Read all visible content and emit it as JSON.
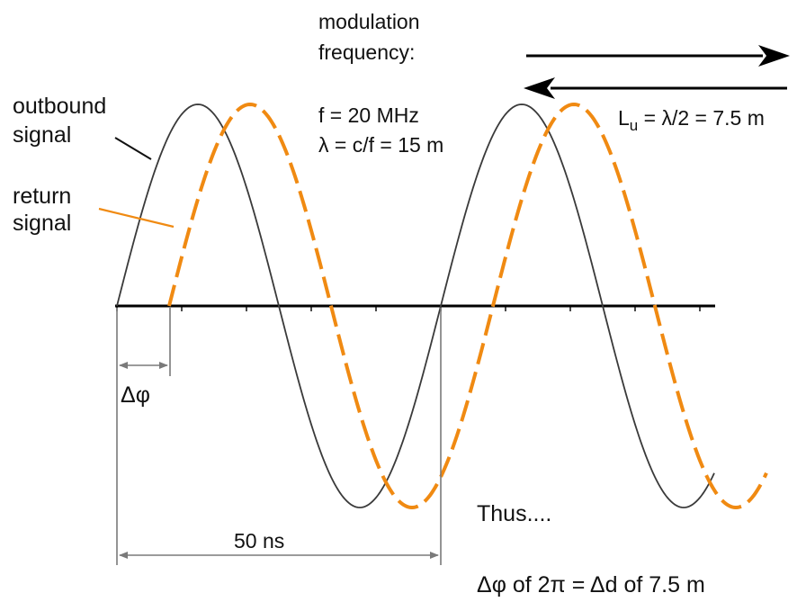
{
  "modulation": {
    "line1": "modulation",
    "line2": "frequency:"
  },
  "frequency": {
    "f": "f = 20 MHz",
    "lambda": "λ = c/f = 15 m"
  },
  "unambiguous_range": {
    "base": "L",
    "subscript": "u",
    "rest": " = λ/2 = 7.5 m"
  },
  "outbound_label": {
    "line1": "outbound",
    "line2": "signal"
  },
  "return_label": {
    "line1": "return",
    "line2": "signal"
  },
  "phase_shift_label": "Δφ",
  "period_label": "50 ns",
  "conclusion": {
    "thus": "Thus....",
    "equation": "Δφ of 2π = Δd of 7.5 m"
  },
  "colors": {
    "outbound": "#3a3a3a",
    "return": "#f08a12",
    "axis": "#000000",
    "dimension": "#7a7a7a"
  }
}
